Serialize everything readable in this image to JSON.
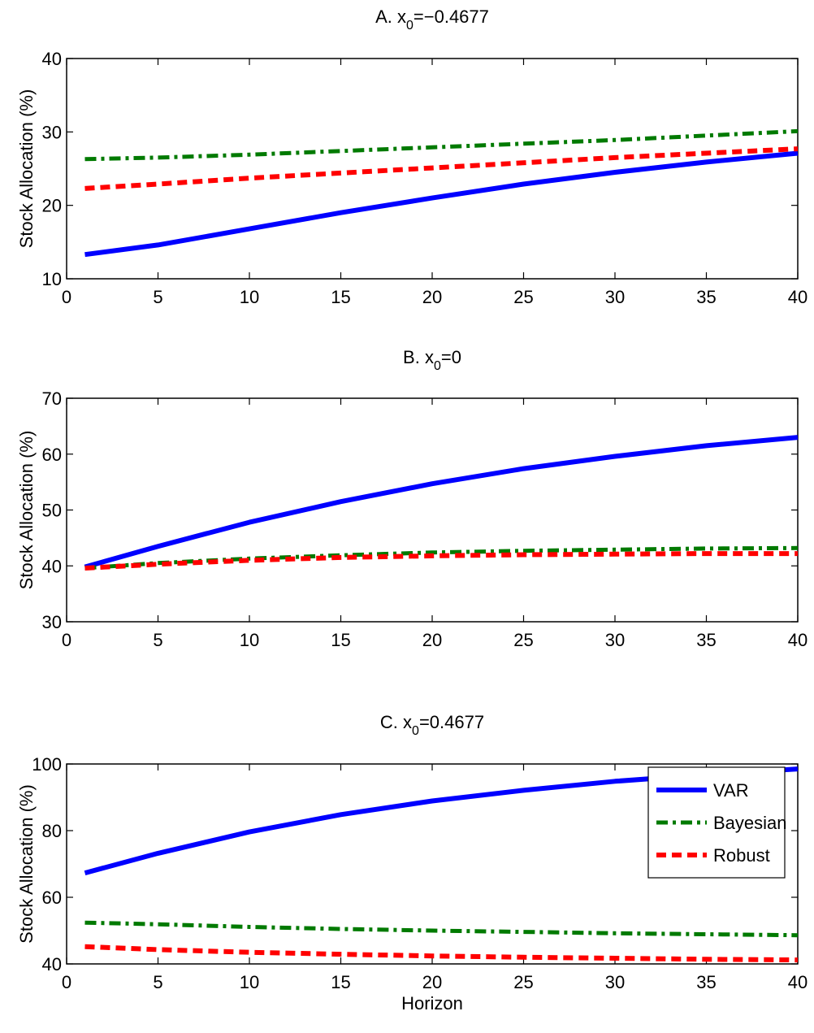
{
  "colors": {
    "VAR": "#0000ff",
    "Bayesian": "#007a00",
    "Robust": "#ff0000",
    "axis": "#000000",
    "background": "#ffffff"
  },
  "chart_data": [
    {
      "type": "line",
      "title": {
        "prefix": "A. x",
        "subscript": "0",
        "suffix": "=−0.4677"
      },
      "xlabel": "",
      "ylabel": "Stock Allocation (%)",
      "xlim": [
        0,
        40
      ],
      "ylim": [
        10,
        40
      ],
      "xticks": [
        0,
        5,
        10,
        15,
        20,
        25,
        30,
        35,
        40
      ],
      "yticks": [
        10,
        20,
        30,
        40
      ],
      "grid": false,
      "legend": null,
      "x": [
        1,
        5,
        10,
        15,
        20,
        25,
        30,
        35,
        40
      ],
      "series": [
        {
          "name": "VAR",
          "style": "solid",
          "values": [
            13.3,
            14.6,
            16.8,
            19.0,
            21.0,
            22.9,
            24.5,
            25.9,
            27.1
          ]
        },
        {
          "name": "Bayesian",
          "style": "dashdot",
          "values": [
            26.3,
            26.5,
            26.9,
            27.4,
            27.9,
            28.4,
            28.9,
            29.5,
            30.1
          ]
        },
        {
          "name": "Robust",
          "style": "dashed",
          "values": [
            22.3,
            22.9,
            23.7,
            24.4,
            25.1,
            25.8,
            26.5,
            27.1,
            27.7
          ]
        }
      ]
    },
    {
      "type": "line",
      "title": {
        "prefix": "B. x",
        "subscript": "0",
        "suffix": "=0"
      },
      "xlabel": "",
      "ylabel": "Stock Allocation (%)",
      "xlim": [
        0,
        40
      ],
      "ylim": [
        30,
        70
      ],
      "xticks": [
        0,
        5,
        10,
        15,
        20,
        25,
        30,
        35,
        40
      ],
      "yticks": [
        30,
        40,
        50,
        60,
        70
      ],
      "grid": false,
      "legend": null,
      "x": [
        1,
        5,
        10,
        15,
        20,
        25,
        30,
        35,
        40
      ],
      "series": [
        {
          "name": "VAR",
          "style": "solid",
          "values": [
            39.8,
            43.5,
            47.8,
            51.5,
            54.7,
            57.4,
            59.6,
            61.5,
            63.0
          ]
        },
        {
          "name": "Bayesian",
          "style": "dashdot",
          "values": [
            39.6,
            40.5,
            41.3,
            41.9,
            42.4,
            42.7,
            42.9,
            43.1,
            43.2
          ]
        },
        {
          "name": "Robust",
          "style": "dashed",
          "values": [
            39.6,
            40.3,
            41.0,
            41.5,
            41.8,
            42.0,
            42.1,
            42.2,
            42.2
          ]
        }
      ]
    },
    {
      "type": "line",
      "title": {
        "prefix": "C. x",
        "subscript": "0",
        "suffix": "=0.4677"
      },
      "xlabel": "Horizon",
      "ylabel": "Stock Allocation (%)",
      "xlim": [
        0,
        40
      ],
      "ylim": [
        40,
        100
      ],
      "xticks": [
        0,
        5,
        10,
        15,
        20,
        25,
        30,
        35,
        40
      ],
      "yticks": [
        40,
        60,
        80,
        100
      ],
      "grid": false,
      "legend": "top-right",
      "x": [
        1,
        5,
        10,
        15,
        20,
        25,
        30,
        35,
        40
      ],
      "series": [
        {
          "name": "VAR",
          "style": "solid",
          "values": [
            67.3,
            73.2,
            79.6,
            84.8,
            88.9,
            92.1,
            94.8,
            96.8,
            98.5
          ]
        },
        {
          "name": "Bayesian",
          "style": "dashdot",
          "values": [
            52.4,
            51.9,
            51.1,
            50.5,
            50.0,
            49.6,
            49.2,
            48.9,
            48.6
          ]
        },
        {
          "name": "Robust",
          "style": "dashed",
          "values": [
            45.2,
            44.3,
            43.5,
            42.9,
            42.4,
            42.0,
            41.7,
            41.4,
            41.2
          ]
        }
      ]
    }
  ]
}
